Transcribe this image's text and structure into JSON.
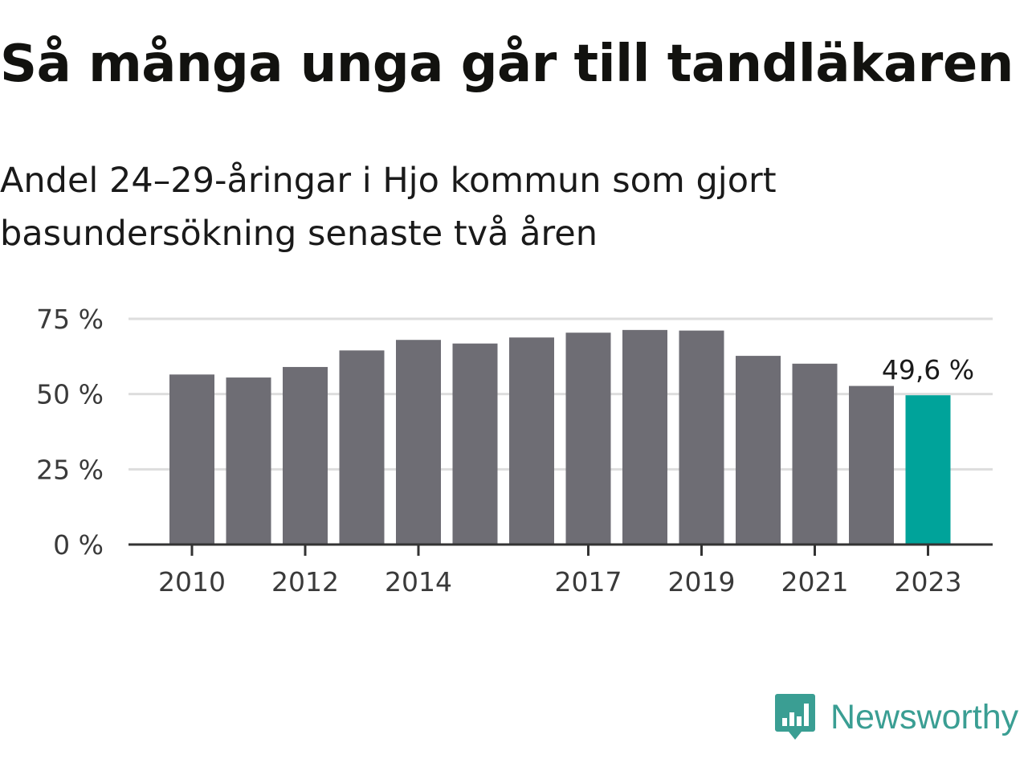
{
  "title": "Så många unga går till tandläkaren",
  "subtitle": "Andel 24–29-åringar i Hjo kommun som gjort basundersökning senaste två åren",
  "brand": {
    "name": "Newsworthy",
    "color": "#3a9e93",
    "icon": "chart-speech-bubble-icon"
  },
  "chart_data": {
    "type": "bar",
    "categories": [
      "2010",
      "2011",
      "2012",
      "2013",
      "2014",
      "2015",
      "2016",
      "2017",
      "2018",
      "2019",
      "2020",
      "2021",
      "2022",
      "2023"
    ],
    "values": [
      56.5,
      55.5,
      59,
      64.5,
      68,
      66.8,
      68.8,
      70.4,
      71.3,
      71.1,
      62.7,
      60.1,
      52.7,
      49.6
    ],
    "ylim": [
      0,
      75
    ],
    "yticks": [
      0,
      25,
      50,
      75
    ],
    "ytick_labels": [
      "0 %",
      "25 %",
      "50 %",
      "75 %"
    ],
    "xtick_labels": [
      "2010",
      "2012",
      "2014",
      "2017",
      "2019",
      "2021",
      "2023"
    ],
    "highlight": {
      "category": "2023",
      "label": "49,6 %"
    },
    "colors": {
      "bar": "#6e6d74",
      "highlight": "#00a39a",
      "grid": "#dddddd",
      "axis": "#333333"
    },
    "grid": true
  }
}
